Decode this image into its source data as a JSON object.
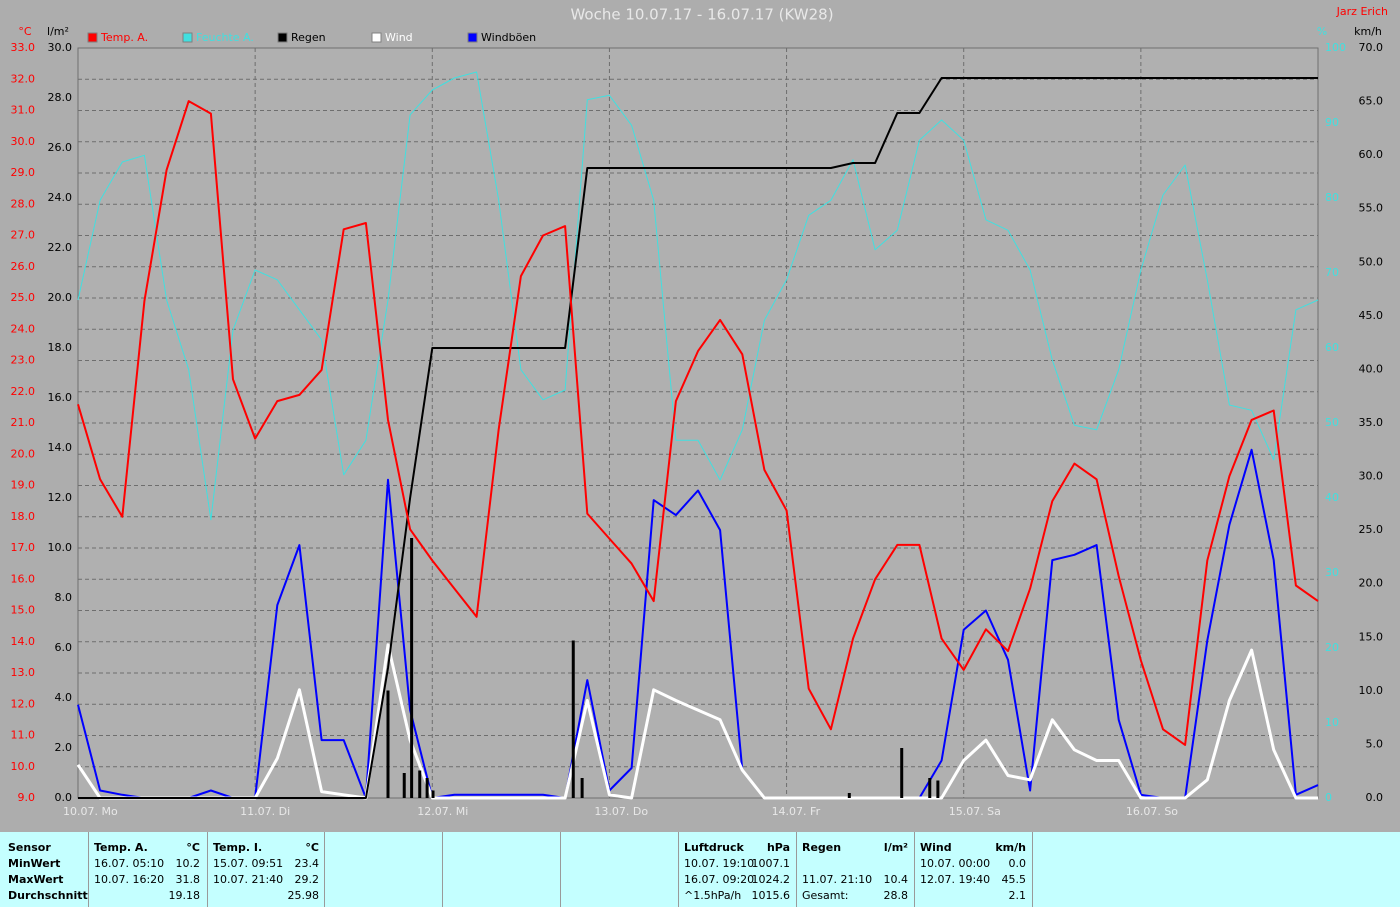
{
  "chart_data": {
    "type": "line",
    "title": "Woche 10.07.17 - 16.07.17 (KW28)",
    "author": "Jarz Erich",
    "y_label": "°C",
    "y2_label": "l/m²",
    "y3_label": "%",
    "y4_label": "km/h",
    "xlim": [
      0,
      168
    ],
    "xticks": [
      {
        "value": 0,
        "label": "10.07. Mo"
      },
      {
        "value": 24,
        "label": "11.07. Di"
      },
      {
        "value": 48,
        "label": "12.07. Mi"
      },
      {
        "value": 72,
        "label": "13.07. Do"
      },
      {
        "value": 96,
        "label": "14.07. Fr"
      },
      {
        "value": 120,
        "label": "15.07. Sa"
      },
      {
        "value": 144,
        "label": "16.07. So"
      }
    ],
    "ylim": [
      9,
      33
    ],
    "yticks": [
      {
        "value": 9,
        "label": "9.0"
      },
      {
        "value": 10,
        "label": "10.0"
      },
      {
        "value": 11,
        "label": "11.0"
      },
      {
        "value": 12,
        "label": "12.0"
      },
      {
        "value": 13,
        "label": "13.0"
      },
      {
        "value": 14,
        "label": "14.0"
      },
      {
        "value": 15,
        "label": "15.0"
      },
      {
        "value": 16,
        "label": "16.0"
      },
      {
        "value": 17,
        "label": "17.0"
      },
      {
        "value": 18,
        "label": "18.0"
      },
      {
        "value": 19,
        "label": "19.0"
      },
      {
        "value": 20,
        "label": "20.0"
      },
      {
        "value": 21,
        "label": "21.0"
      },
      {
        "value": 22,
        "label": "22.0"
      },
      {
        "value": 23,
        "label": "23.0"
      },
      {
        "value": 24,
        "label": "24.0"
      },
      {
        "value": 25,
        "label": "25.0"
      },
      {
        "value": 26,
        "label": "26.0"
      },
      {
        "value": 27,
        "label": "27.0"
      },
      {
        "value": 28,
        "label": "28.0"
      },
      {
        "value": 29,
        "label": "29.0"
      },
      {
        "value": 30,
        "label": "30.0"
      },
      {
        "value": 31,
        "label": "31.0"
      },
      {
        "value": 32,
        "label": "32.0"
      },
      {
        "value": 33,
        "label": "33.0"
      }
    ],
    "y2lim": [
      0,
      30
    ],
    "y2ticks": [
      {
        "value": 0,
        "label": "0.0"
      },
      {
        "value": 2,
        "label": "2.0"
      },
      {
        "value": 4,
        "label": "4.0"
      },
      {
        "value": 6,
        "label": "6.0"
      },
      {
        "value": 8,
        "label": "8.0"
      },
      {
        "value": 10,
        "label": "10.0"
      },
      {
        "value": 12,
        "label": "12.0"
      },
      {
        "value": 14,
        "label": "14.0"
      },
      {
        "value": 16,
        "label": "16.0"
      },
      {
        "value": 18,
        "label": "18.0"
      },
      {
        "value": 20,
        "label": "20.0"
      },
      {
        "value": 22,
        "label": "22.0"
      },
      {
        "value": 24,
        "label": "24.0"
      },
      {
        "value": 26,
        "label": "26.0"
      },
      {
        "value": 28,
        "label": "28.0"
      },
      {
        "value": 30,
        "label": "30.0"
      }
    ],
    "y3lim": [
      0,
      100
    ],
    "y3ticks": [
      0,
      10,
      20,
      30,
      40,
      50,
      60,
      70,
      80,
      90,
      100
    ],
    "y4lim": [
      0,
      70
    ],
    "y4ticks": [
      {
        "value": 0,
        "label": "0.0"
      },
      {
        "value": 5,
        "label": "5.0"
      },
      {
        "value": 10,
        "label": "10.0"
      },
      {
        "value": 15,
        "label": "15.0"
      },
      {
        "value": 20,
        "label": "20.0"
      },
      {
        "value": 25,
        "label": "25.0"
      },
      {
        "value": 30,
        "label": "30.0"
      },
      {
        "value": 35,
        "label": "35.0"
      },
      {
        "value": 40,
        "label": "40.0"
      },
      {
        "value": 45,
        "label": "45.0"
      },
      {
        "value": 50,
        "label": "50.0"
      },
      {
        "value": 55,
        "label": "55.0"
      },
      {
        "value": 60,
        "label": "60.0"
      },
      {
        "value": 65,
        "label": "65.0"
      },
      {
        "value": 70,
        "label": "70.0"
      }
    ],
    "grid": true,
    "x": [
      0,
      3,
      6,
      9,
      12,
      15,
      18,
      21,
      24,
      27,
      30,
      33,
      36,
      39,
      42,
      45,
      48,
      51,
      54,
      57,
      60,
      63,
      66,
      69,
      72,
      75,
      78,
      81,
      84,
      87,
      90,
      93,
      96,
      99,
      102,
      105,
      108,
      111,
      114,
      117,
      120,
      123,
      126,
      129,
      132,
      135,
      138,
      141,
      144,
      147,
      150,
      153,
      156,
      159,
      162,
      165,
      168
    ],
    "series": [
      {
        "name": "Temp. A.",
        "color": "#ff0000",
        "axis": "y",
        "values": [
          21.6,
          19.2,
          18.0,
          24.9,
          29.1,
          31.3,
          30.9,
          22.4,
          20.5,
          21.7,
          21.9,
          22.7,
          27.2,
          27.4,
          21.1,
          17.6,
          16.6,
          15.7,
          14.8,
          20.8,
          25.7,
          27.0,
          27.3,
          18.1,
          17.3,
          16.5,
          15.3,
          21.7,
          23.3,
          24.3,
          23.2,
          19.5,
          18.2,
          12.5,
          11.2,
          14.1,
          16.0,
          17.1,
          17.1,
          14.1,
          13.1,
          14.4,
          13.7,
          15.7,
          18.5,
          19.7,
          19.2,
          16.1,
          13.4,
          11.2,
          10.7,
          16.6,
          19.3,
          21.1,
          21.4,
          15.8,
          15.3
        ]
      },
      {
        "name": "Feuchte A.",
        "color": "#40e0e0",
        "axis": "y3",
        "values": [
          66.4,
          79.7,
          84.8,
          85.7,
          66.4,
          57.1,
          37.1,
          62.4,
          70.4,
          69.1,
          65.1,
          61.1,
          43.1,
          47.7,
          66.4,
          91.1,
          94.4,
          96.0,
          96.8,
          79.7,
          57.1,
          53.1,
          54.4,
          93.1,
          93.7,
          89.7,
          79.7,
          47.7,
          47.7,
          42.4,
          49.1,
          63.7,
          69.1,
          77.7,
          79.7,
          85.1,
          73.1,
          75.7,
          87.7,
          90.4,
          87.7,
          77.1,
          75.7,
          70.4,
          58.4,
          49.7,
          49.1,
          57.1,
          70.4,
          80.4,
          84.4,
          69.1,
          52.4,
          51.7,
          45.1,
          65.1,
          66.4
        ]
      },
      {
        "name": "Regen",
        "color": "#000000",
        "axis": "y2",
        "values": [
          0,
          0,
          0,
          0,
          0,
          0,
          0,
          0,
          0,
          0,
          0,
          0,
          0,
          0,
          5.2,
          12.0,
          18.0,
          18.0,
          18.0,
          18.0,
          18.0,
          18.0,
          18.0,
          25.2,
          25.2,
          25.2,
          25.2,
          25.2,
          25.2,
          25.2,
          25.2,
          25.2,
          25.2,
          25.2,
          25.2,
          25.4,
          25.4,
          27.4,
          27.4,
          28.8,
          28.8,
          28.8,
          28.8,
          28.8,
          28.8,
          28.8,
          28.8,
          28.8,
          28.8,
          28.8,
          28.8,
          28.8,
          28.8,
          28.8,
          28.8,
          28.8,
          28.8
        ]
      },
      {
        "name": "Wind",
        "color": "#ffffff",
        "axis": "y4",
        "values": [
          3.1,
          0,
          0,
          0,
          0,
          0,
          0,
          0,
          0,
          3.7,
          10.1,
          0.6,
          0.3,
          0,
          14.3,
          5.4,
          0,
          0,
          0,
          0,
          0,
          0,
          0,
          9.1,
          0.3,
          0,
          10.1,
          9.1,
          8.2,
          7.3,
          2.6,
          0,
          0,
          0,
          0,
          0,
          0,
          0,
          0,
          0,
          3.5,
          5.4,
          2.1,
          1.7,
          7.3,
          4.5,
          3.5,
          3.5,
          0,
          0,
          0,
          1.7,
          9.1,
          13.8,
          4.5,
          0,
          0
        ]
      },
      {
        "name": "Windböen",
        "color": "#0000ff",
        "axis": "y4",
        "values": [
          8.7,
          0.7,
          0.3,
          0,
          0,
          0,
          0.7,
          0,
          0,
          18.0,
          23.6,
          5.4,
          5.4,
          0,
          29.7,
          8.2,
          0,
          0.3,
          0.3,
          0.3,
          0.3,
          0.3,
          0,
          11.0,
          0.7,
          2.8,
          27.8,
          26.4,
          28.7,
          25.0,
          2.6,
          0,
          0,
          0,
          0,
          0,
          0,
          0,
          0,
          3.5,
          15.7,
          17.5,
          12.9,
          0.7,
          22.2,
          22.7,
          23.6,
          7.3,
          0.3,
          0,
          0,
          14.7,
          25.5,
          32.5,
          22.2,
          0.3,
          1.2
        ]
      }
    ],
    "rain_bars": {
      "color": "#000000",
      "axis": "y2",
      "x": [
        42.0,
        44.2,
        45.2,
        46.3,
        47.3,
        48.1,
        67.1,
        68.3,
        104.5,
        111.6,
        115.4,
        116.5
      ],
      "values": [
        4.3,
        1.0,
        10.4,
        1.1,
        0.8,
        0.3,
        6.3,
        0.8,
        0.2,
        2.0,
        0.8,
        0.7
      ]
    }
  },
  "table": {
    "header": "Sensor",
    "row_labels": [
      "MinWert",
      "MaxWert",
      "Durchschnitt"
    ],
    "groups": [
      {
        "name": "Temp. A.",
        "unit": "°C",
        "rows": [
          [
            "16.07. 05:10",
            "10.2"
          ],
          [
            "10.07. 16:20",
            "31.8"
          ],
          [
            null,
            "19.18"
          ]
        ]
      },
      {
        "name": "Temp. I.",
        "unit": "°C",
        "rows": [
          [
            "15.07. 09:51",
            "23.4"
          ],
          [
            "10.07. 21:40",
            "29.2"
          ],
          [
            null,
            "25.98"
          ]
        ]
      },
      {
        "name": "Luftdruck",
        "unit": "hPa",
        "rows": [
          [
            "10.07. 19:10",
            "1007.1"
          ],
          [
            "16.07. 09:20",
            "1024.2"
          ],
          [
            "^1.5hPa/h",
            "1015.6"
          ]
        ]
      },
      {
        "name": "Regen",
        "unit": "l/m²",
        "rows": [
          [
            null,
            null
          ],
          [
            "11.07. 21:10",
            "10.4"
          ],
          [
            "Gesamt:",
            "28.8"
          ]
        ]
      },
      {
        "name": "Wind",
        "unit": "km/h",
        "rows": [
          [
            "10.07. 00:00",
            "0.0"
          ],
          [
            "12.07. 19:40",
            "45.5"
          ],
          [
            null,
            "2.1"
          ]
        ]
      }
    ]
  }
}
